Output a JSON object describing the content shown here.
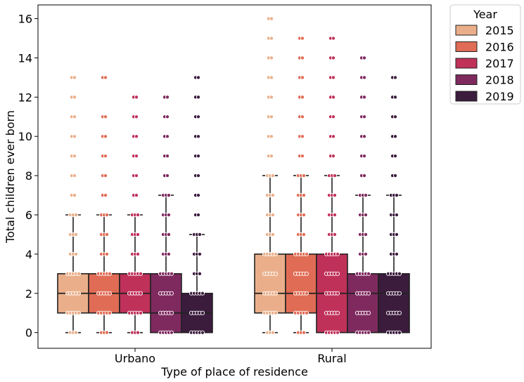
{
  "chart_data": {
    "type": "box",
    "title": "",
    "xlabel": "Type of place of residence",
    "ylabel": "Total children ever born",
    "ylim": [
      -0.8,
      16.7
    ],
    "yticks": [
      0,
      2,
      4,
      6,
      8,
      10,
      12,
      14,
      16
    ],
    "categories": [
      "Urbano",
      "Rural"
    ],
    "legend": {
      "title": "Year",
      "placement": "outside-top-right"
    },
    "series": [
      {
        "name": "2015",
        "color": "#eaaf8a",
        "boxes": [
          {
            "q1": 1,
            "median": 2,
            "q3": 3,
            "whisker_low": 0,
            "whisker_high": 6,
            "outliers": [
              7,
              8,
              9,
              10,
              11,
              12,
              13
            ]
          },
          {
            "q1": 1,
            "median": 2,
            "q3": 4,
            "whisker_low": 0,
            "whisker_high": 8,
            "outliers": [
              9,
              10,
              11,
              12,
              13,
              14,
              15,
              16
            ]
          }
        ]
      },
      {
        "name": "2016",
        "color": "#e06c55",
        "boxes": [
          {
            "q1": 1,
            "median": 2,
            "q3": 3,
            "whisker_low": 0,
            "whisker_high": 6,
            "outliers": [
              7,
              8,
              9,
              10,
              11,
              13
            ]
          },
          {
            "q1": 1,
            "median": 2,
            "q3": 4,
            "whisker_low": 0,
            "whisker_high": 8,
            "outliers": [
              9,
              10,
              11,
              12,
              13,
              14,
              15
            ]
          }
        ]
      },
      {
        "name": "2017",
        "color": "#c0315a",
        "boxes": [
          {
            "q1": 1,
            "median": 2,
            "q3": 3,
            "whisker_low": 0,
            "whisker_high": 6,
            "outliers": [
              7,
              8,
              9,
              10,
              11,
              12
            ]
          },
          {
            "q1": 0,
            "median": 2,
            "q3": 4,
            "whisker_low": 0,
            "whisker_high": 8,
            "outliers": [
              9,
              10,
              11,
              12,
              13,
              14,
              15
            ]
          }
        ]
      },
      {
        "name": "2018",
        "color": "#7f2a5f",
        "boxes": [
          {
            "q1": 0,
            "median": 1,
            "q3": 3,
            "whisker_low": 0,
            "whisker_high": 7,
            "outliers": [
              8,
              9,
              10,
              11,
              12
            ]
          },
          {
            "q1": 0,
            "median": 2,
            "q3": 3,
            "whisker_low": 0,
            "whisker_high": 7,
            "outliers": [
              8,
              9,
              10,
              11,
              12,
              13,
              14
            ]
          }
        ]
      },
      {
        "name": "2019",
        "color": "#3b1c3d",
        "boxes": [
          {
            "q1": 0,
            "median": 1,
            "q3": 2,
            "whisker_low": 0,
            "whisker_high": 5,
            "outliers": [
              6,
              7,
              8,
              9,
              10,
              11,
              12,
              13
            ]
          },
          {
            "q1": 0,
            "median": 2,
            "q3": 3,
            "whisker_low": 0,
            "whisker_high": 7,
            "outliers": [
              8,
              9,
              10,
              11,
              12,
              13
            ]
          }
        ]
      }
    ]
  }
}
